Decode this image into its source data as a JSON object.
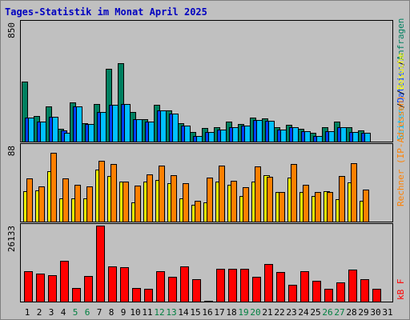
{
  "title": "Tages-Statistik im Monat April 2025",
  "legend_top": {
    "sep": "/",
    "items": [
      {
        "label": "Anfragen",
        "color": "#008060"
      },
      {
        "label": "Dateien",
        "color": "#0040ff"
      },
      {
        "label": "Seiten",
        "color": "#00c0ff"
      }
    ]
  },
  "legend_mid": {
    "sep": "/",
    "items": [
      {
        "label": "Besuche",
        "color": "#ffff00"
      },
      {
        "label": "Rechner (IP-Adressen)",
        "color": "#ff8000"
      }
    ]
  },
  "legend_bottom": {
    "label": "kB F",
    "color": "#ff0000"
  },
  "colors": {
    "panel": "#c0c0c0",
    "requests": "#008060",
    "files": "#0040ff",
    "pages": "#00c0ff",
    "visits": "#ffff00",
    "hosts": "#ff8000",
    "kbytes": "#ff0000",
    "weekend_label": "#008040"
  },
  "chart_data": {
    "type": "bar",
    "categories": [
      "1",
      "2",
      "3",
      "4",
      "5",
      "6",
      "7",
      "8",
      "9",
      "10",
      "11",
      "12",
      "13",
      "14",
      "15",
      "16",
      "17",
      "18",
      "19",
      "20",
      "21",
      "22",
      "23",
      "24",
      "25",
      "26",
      "27",
      "28",
      "29",
      "30",
      "31"
    ],
    "weekend_days": [
      "5",
      "6",
      "12",
      "13",
      "19",
      "20",
      "26",
      "27"
    ],
    "panels": [
      {
        "ymax_label": "850",
        "ylim": [
          0,
          850
        ],
        "series": [
          {
            "name": "Anfragen",
            "values": [
              430,
              180,
              250,
              90,
              280,
              130,
              270,
              520,
              560,
              210,
              160,
              265,
              225,
              130,
              70,
              95,
              100,
              140,
              125,
              170,
              165,
              100,
              120,
              90,
              60,
              100,
              140,
              105,
              80,
              null,
              null
            ]
          },
          {
            "name": "Dateien",
            "values": [
              170,
              140,
              175,
              80,
              250,
              125,
              210,
              265,
              270,
              160,
              140,
              220,
              200,
              115,
              40,
              70,
              85,
              105,
              115,
              155,
              150,
              85,
              105,
              75,
              40,
              75,
              100,
              70,
              60,
              null,
              null
            ]
          },
          {
            "name": "Seiten",
            "values": [
              170,
              140,
              175,
              60,
              250,
              125,
              210,
              265,
              270,
              160,
              140,
              220,
              200,
              115,
              40,
              70,
              85,
              105,
              115,
              155,
              150,
              85,
              105,
              75,
              40,
              75,
              100,
              70,
              60,
              null,
              null
            ]
          }
        ]
      },
      {
        "ymax_label": "88",
        "ylim": [
          0,
          88
        ],
        "series": [
          {
            "name": "Besuche",
            "values": [
              35,
              36,
              58,
              27,
              27,
              27,
              60,
              53,
              46,
              22,
              46,
              48,
              44,
              27,
              19,
              22,
              46,
              43,
              30,
              46,
              54,
              34,
              51,
              34,
              30,
              35,
              26,
              45,
              24,
              null,
              null
            ]
          },
          {
            "name": "Rechner (IP-Adressen)",
            "values": [
              50,
              41,
              80,
              50,
              43,
              41,
              70,
              67,
              46,
              42,
              55,
              65,
              54,
              44,
              24,
              51,
              65,
              47,
              40,
              64,
              52,
              34,
              67,
              43,
              34,
              34,
              53,
              68,
              37,
              null,
              null
            ]
          }
        ]
      },
      {
        "ymax_label": "26133",
        "ylim": [
          0,
          26133
        ],
        "series": [
          {
            "name": "kB F",
            "values": [
              10500,
              9600,
              9000,
              14000,
              4800,
              8800,
              26133,
              12000,
              11700,
              4800,
              4400,
              10500,
              8400,
              12000,
              7600,
              0,
              11400,
              11400,
              11400,
              8600,
              13000,
              10200,
              5700,
              10500,
              7200,
              4500,
              6500,
              11000,
              7700,
              4500,
              null
            ]
          }
        ]
      }
    ]
  }
}
